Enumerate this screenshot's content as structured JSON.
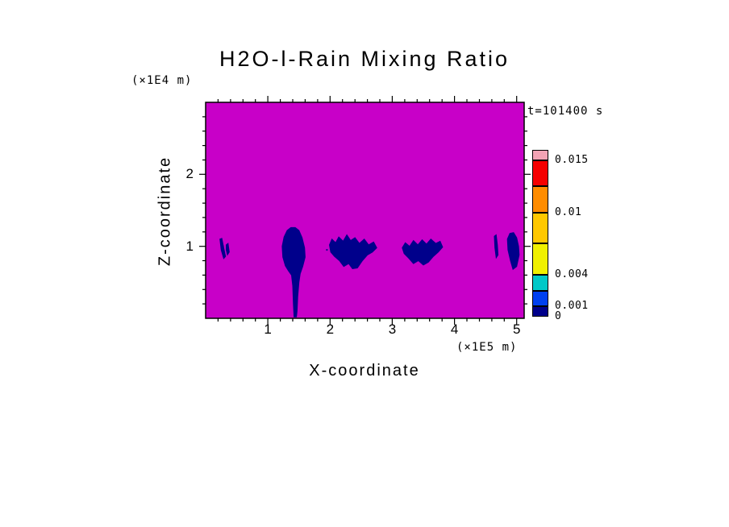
{
  "page": {
    "background_color": "#ffffff"
  },
  "chart_data": {
    "type": "filled_contour",
    "title": "H2O-l-Rain Mixing Ratio",
    "time_label": "t=101400 s",
    "x_axis": {
      "label": "X-coordinate",
      "unit_label": "(×1E5 m)",
      "min": 0,
      "max": 5.12,
      "major_ticks": [
        1,
        2,
        3,
        4,
        5
      ],
      "minor_step": 0.2
    },
    "z_axis": {
      "label": "Z-coordinate",
      "unit_label": "(×1E4 m)",
      "min": 0,
      "max": 3,
      "major_ticks": [
        1,
        2
      ],
      "minor_step": 0.2
    },
    "colorbar": {
      "min": 0,
      "max": 0.016,
      "levels": [
        0,
        0.001,
        0.0025,
        0.004,
        0.007,
        0.01,
        0.0125,
        0.015,
        0.016
      ],
      "colors": [
        "#00008B",
        "#0040F0",
        "#00C8C8",
        "#F0F000",
        "#FFC800",
        "#FF8C00",
        "#F50000",
        "#F2A3B4"
      ],
      "labeled_levels": [
        {
          "value": 0.015,
          "label": "0.015"
        },
        {
          "value": 0.01,
          "label": "0.01"
        },
        {
          "value": 0.004,
          "label": "0.004"
        },
        {
          "value": 0.001,
          "label": "0.001"
        },
        {
          "value": 0,
          "label": "0"
        }
      ]
    },
    "field": {
      "background_color": "#C800C8",
      "feature_color": "#00008B",
      "features": [
        {
          "id": "rain-region-1",
          "points": [
            [
              0.23,
              1.1
            ],
            [
              0.26,
              1.11
            ],
            [
              0.29,
              0.98
            ],
            [
              0.32,
              0.86
            ],
            [
              0.29,
              0.83
            ],
            [
              0.25,
              0.95
            ]
          ]
        },
        {
          "id": "rain-region-1b",
          "points": [
            [
              0.33,
              1.02
            ],
            [
              0.36,
              1.04
            ],
            [
              0.38,
              0.92
            ],
            [
              0.35,
              0.88
            ],
            [
              0.33,
              0.95
            ]
          ]
        },
        {
          "id": "rain-shaft-2",
          "points": [
            [
              1.24,
              0.85
            ],
            [
              1.23,
              1.0
            ],
            [
              1.26,
              1.13
            ],
            [
              1.31,
              1.22
            ],
            [
              1.37,
              1.26
            ],
            [
              1.44,
              1.26
            ],
            [
              1.5,
              1.22
            ],
            [
              1.55,
              1.12
            ],
            [
              1.59,
              0.98
            ],
            [
              1.6,
              0.85
            ],
            [
              1.56,
              0.72
            ],
            [
              1.52,
              0.62
            ],
            [
              1.5,
              0.5
            ],
            [
              1.48,
              0.3
            ],
            [
              1.47,
              0.1
            ],
            [
              1.46,
              0.02
            ],
            [
              1.42,
              0.02
            ],
            [
              1.41,
              0.2
            ],
            [
              1.4,
              0.45
            ],
            [
              1.38,
              0.6
            ],
            [
              1.33,
              0.66
            ],
            [
              1.28,
              0.73
            ]
          ]
        },
        {
          "id": "rain-region-3",
          "points": [
            [
              1.99,
              1.02
            ],
            [
              2.03,
              1.1
            ],
            [
              2.09,
              1.05
            ],
            [
              2.14,
              1.13
            ],
            [
              2.21,
              1.07
            ],
            [
              2.27,
              1.16
            ],
            [
              2.33,
              1.08
            ],
            [
              2.4,
              1.12
            ],
            [
              2.47,
              1.04
            ],
            [
              2.55,
              1.1
            ],
            [
              2.62,
              1.02
            ],
            [
              2.7,
              1.06
            ],
            [
              2.75,
              0.98
            ],
            [
              2.68,
              0.92
            ],
            [
              2.6,
              0.88
            ],
            [
              2.52,
              0.8
            ],
            [
              2.44,
              0.7
            ],
            [
              2.36,
              0.69
            ],
            [
              2.3,
              0.76
            ],
            [
              2.22,
              0.72
            ],
            [
              2.15,
              0.8
            ],
            [
              2.07,
              0.86
            ],
            [
              2.01,
              0.92
            ]
          ]
        },
        {
          "id": "rain-region-4",
          "points": [
            [
              3.16,
              0.98
            ],
            [
              3.21,
              1.05
            ],
            [
              3.28,
              1.0
            ],
            [
              3.34,
              1.08
            ],
            [
              3.41,
              1.02
            ],
            [
              3.48,
              1.09
            ],
            [
              3.55,
              1.03
            ],
            [
              3.62,
              1.1
            ],
            [
              3.7,
              1.04
            ],
            [
              3.77,
              1.07
            ],
            [
              3.81,
              0.99
            ],
            [
              3.74,
              0.92
            ],
            [
              3.66,
              0.86
            ],
            [
              3.58,
              0.78
            ],
            [
              3.5,
              0.74
            ],
            [
              3.42,
              0.8
            ],
            [
              3.34,
              0.76
            ],
            [
              3.26,
              0.84
            ],
            [
              3.19,
              0.9
            ]
          ]
        },
        {
          "id": "rain-streak-5",
          "points": [
            [
              4.64,
              1.14
            ],
            [
              4.67,
              1.16
            ],
            [
              4.69,
              1.02
            ],
            [
              4.7,
              0.88
            ],
            [
              4.67,
              0.84
            ],
            [
              4.65,
              0.98
            ]
          ]
        },
        {
          "id": "rain-region-6",
          "points": [
            [
              4.85,
              1.1
            ],
            [
              4.89,
              1.18
            ],
            [
              4.95,
              1.19
            ],
            [
              5.0,
              1.12
            ],
            [
              5.03,
              1.0
            ],
            [
              5.04,
              0.88
            ],
            [
              5.0,
              0.72
            ],
            [
              4.94,
              0.68
            ],
            [
              4.9,
              0.8
            ],
            [
              4.86,
              0.95
            ]
          ]
        }
      ],
      "speckles": [
        [
          1.95,
          0.95
        ],
        [
          2.05,
          1.0
        ],
        [
          2.1,
          0.95
        ],
        [
          2.2,
          0.9
        ],
        [
          2.35,
          1.05
        ],
        [
          2.42,
          0.88
        ],
        [
          2.5,
          0.95
        ],
        [
          2.58,
          0.95
        ],
        [
          2.65,
          0.97
        ],
        [
          3.24,
          0.95
        ],
        [
          3.3,
          0.92
        ],
        [
          3.45,
          0.9
        ],
        [
          3.6,
          0.95
        ],
        [
          3.72,
          0.97
        ],
        [
          0.28,
          1.0
        ],
        [
          1.3,
          0.9
        ],
        [
          1.52,
          0.95
        ],
        [
          4.9,
          1.0
        ]
      ]
    }
  }
}
